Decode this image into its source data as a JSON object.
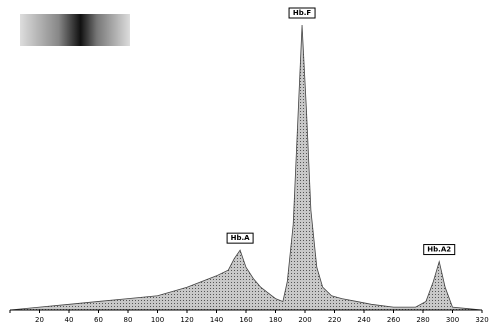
{
  "chart_data": {
    "type": "area",
    "x": [
      0,
      20,
      40,
      60,
      80,
      100,
      120,
      130,
      140,
      148,
      152,
      156,
      160,
      165,
      170,
      175,
      180,
      185,
      188,
      192,
      195,
      198,
      201,
      204,
      208,
      212,
      218,
      225,
      235,
      245,
      260,
      275,
      282,
      287,
      291,
      295,
      300,
      310,
      320
    ],
    "values": [
      0,
      1,
      2,
      3,
      4,
      5,
      8,
      10,
      12,
      14,
      18,
      21,
      15,
      11,
      8,
      6,
      4,
      3,
      10,
      30,
      65,
      100,
      70,
      35,
      15,
      8,
      5,
      4,
      3,
      2,
      1,
      1,
      3,
      10,
      17,
      8,
      1,
      0.5,
      0
    ],
    "color": "#9a9a9a",
    "xlim": [
      0,
      320
    ],
    "xticks": [
      0,
      20,
      40,
      60,
      80,
      100,
      120,
      140,
      160,
      180,
      200,
      220,
      240,
      260,
      280,
      300,
      320
    ],
    "ylim": [
      0,
      100
    ],
    "annotations": [
      {
        "text": "Hb.A",
        "x": 156
      },
      {
        "text": "Hb.F",
        "x": 198
      },
      {
        "text": "Hb.A2",
        "x": 291
      }
    ]
  }
}
